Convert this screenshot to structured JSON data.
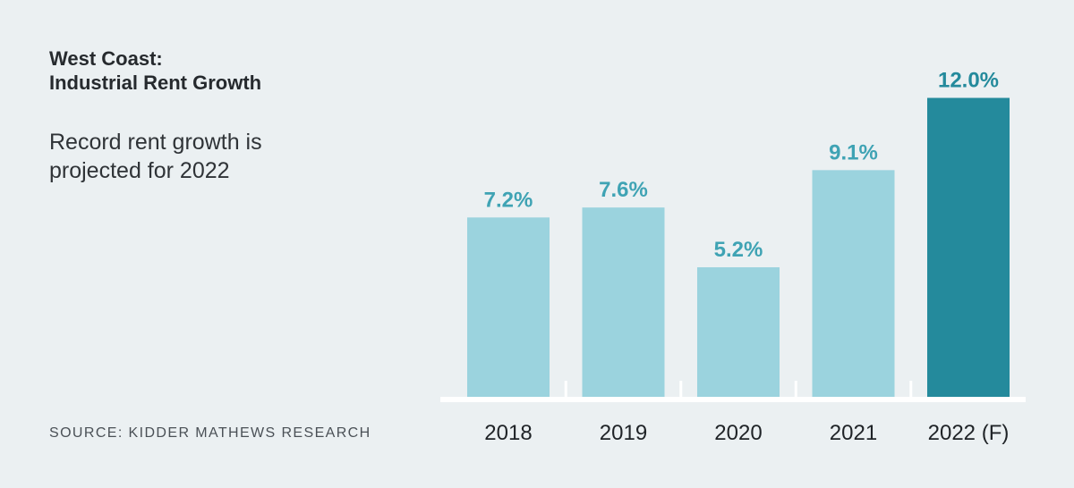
{
  "title_lines": [
    "West Coast:",
    "Industrial Rent Growth"
  ],
  "subtitle_lines": [
    "Record rent growth is",
    "projected for 2022"
  ],
  "source": "SOURCE: KIDDER MATHEWS RESEARCH",
  "colors": {
    "background": "#ebf0f2",
    "bar_light": "#9bd3de",
    "bar_dark": "#248a9c",
    "label_light": "#3fa3b4",
    "label_dark": "#248a9c",
    "axis": "#ffffff"
  },
  "chart_data": {
    "type": "bar",
    "categories": [
      "2018",
      "2019",
      "2020",
      "2021",
      "2022 (F)"
    ],
    "values": [
      7.2,
      7.6,
      5.2,
      9.1,
      12.0
    ],
    "data_labels": [
      "7.2%",
      "7.6%",
      "5.2%",
      "9.1%",
      "12.0%"
    ],
    "highlight_index": 4,
    "ylim": [
      0,
      12.7
    ],
    "grid": false,
    "legend": "none"
  }
}
